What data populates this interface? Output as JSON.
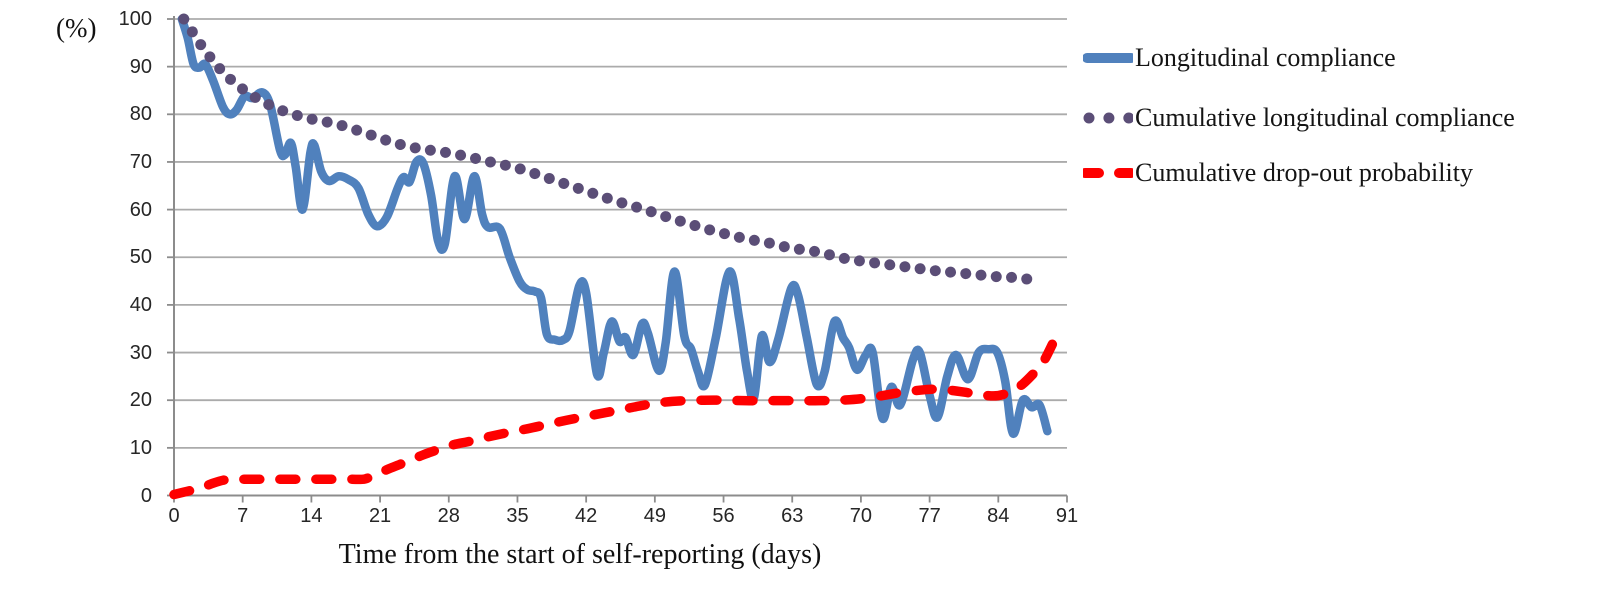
{
  "figure": {
    "y_axis_unit_label": "(%)",
    "x_axis_title": "Time from the start of self-reporting (days)"
  },
  "axes": {
    "y_ticks": [
      "100",
      "90",
      "80",
      "70",
      "60",
      "50",
      "40",
      "30",
      "20",
      "10",
      "0"
    ],
    "y_tick_values": [
      100,
      90,
      80,
      70,
      60,
      50,
      40,
      30,
      20,
      10,
      0
    ],
    "x_ticks": [
      "0",
      "7",
      "14",
      "21",
      "28",
      "35",
      "42",
      "49",
      "56",
      "63",
      "70",
      "77",
      "84",
      "91"
    ],
    "x_tick_values": [
      0,
      7,
      14,
      21,
      28,
      35,
      42,
      49,
      56,
      63,
      70,
      77,
      84,
      91
    ]
  },
  "legend": {
    "items": [
      {
        "label": "Longitudinal compliance",
        "style": "solid",
        "color": "#5081BD"
      },
      {
        "label": "Cumulative longitudinal compliance",
        "style": "dotted",
        "color": "#5B4E77"
      },
      {
        "label": "Cumulative drop-out probability",
        "style": "dashed",
        "color": "#FE0000"
      }
    ]
  },
  "chart_data": {
    "type": "line",
    "title": "",
    "xlabel": "Time from the start of self-reporting (days)",
    "ylabel": "(%)",
    "xlim": [
      0,
      91
    ],
    "ylim": [
      0,
      100
    ],
    "x_tick_step": 7,
    "y_tick_step": 10,
    "grid": true,
    "legend_position": "right",
    "series": [
      {
        "name": "Longitudinal compliance",
        "color": "#5081BD",
        "line_style": "solid",
        "points": [
          [
            0.8,
            100
          ],
          [
            1.4,
            96
          ],
          [
            2,
            90.5
          ],
          [
            2.6,
            89.8
          ],
          [
            3.2,
            90.5
          ],
          [
            4,
            87
          ],
          [
            5,
            81.5
          ],
          [
            5.7,
            80
          ],
          [
            6.4,
            81
          ],
          [
            7.2,
            83.8
          ],
          [
            8,
            83.4
          ],
          [
            9,
            84.6
          ],
          [
            9.8,
            82
          ],
          [
            10.8,
            72.5
          ],
          [
            11.3,
            71.5
          ],
          [
            11.9,
            74
          ],
          [
            12.4,
            69
          ],
          [
            13.1,
            60
          ],
          [
            13.9,
            72
          ],
          [
            14.3,
            73.5
          ],
          [
            15,
            68
          ],
          [
            15.8,
            66
          ],
          [
            16.8,
            67
          ],
          [
            17.8,
            66.3
          ],
          [
            18.8,
            64.5
          ],
          [
            19.8,
            59
          ],
          [
            20.7,
            56.5
          ],
          [
            21.7,
            58.5
          ],
          [
            22.8,
            64.5
          ],
          [
            23.4,
            66.8
          ],
          [
            24,
            65.8
          ],
          [
            24.7,
            70
          ],
          [
            25.4,
            69.7
          ],
          [
            26.2,
            63
          ],
          [
            26.9,
            53.5
          ],
          [
            27.6,
            52.8
          ],
          [
            28.6,
            67
          ],
          [
            29.6,
            58
          ],
          [
            30.6,
            67
          ],
          [
            31.4,
            59
          ],
          [
            32,
            56.3
          ],
          [
            33.2,
            56
          ],
          [
            34.2,
            50
          ],
          [
            35.2,
            45
          ],
          [
            36,
            43.2
          ],
          [
            36.8,
            42.8
          ],
          [
            37.4,
            41.5
          ],
          [
            38,
            33.8
          ],
          [
            38.8,
            32.7
          ],
          [
            39.6,
            32.6
          ],
          [
            40.3,
            34.5
          ],
          [
            41.3,
            44
          ],
          [
            42,
            42.5
          ],
          [
            43.1,
            25.5
          ],
          [
            43.8,
            30
          ],
          [
            44.6,
            36.5
          ],
          [
            45.4,
            32.3
          ],
          [
            46,
            33.2
          ],
          [
            46.8,
            29.5
          ],
          [
            47.7,
            36
          ],
          [
            48.3,
            34
          ],
          [
            49.4,
            26.2
          ],
          [
            50.1,
            32
          ],
          [
            51,
            47
          ],
          [
            52,
            33.5
          ],
          [
            52.7,
            30.7
          ],
          [
            53.4,
            26
          ],
          [
            54.1,
            23.2
          ],
          [
            55.2,
            33
          ],
          [
            56.6,
            47
          ],
          [
            57.6,
            37
          ],
          [
            58.4,
            26
          ],
          [
            59.1,
            20.5
          ],
          [
            59.9,
            33.5
          ],
          [
            60.7,
            28
          ],
          [
            61.6,
            33
          ],
          [
            62.9,
            43.5
          ],
          [
            63.6,
            42
          ],
          [
            64.5,
            33
          ],
          [
            65.5,
            23.3
          ],
          [
            66.3,
            26
          ],
          [
            67.3,
            36.5
          ],
          [
            68.2,
            33
          ],
          [
            68.8,
            31
          ],
          [
            69.6,
            26.4
          ],
          [
            70.5,
            29.5
          ],
          [
            71.2,
            30
          ],
          [
            72.2,
            16.2
          ],
          [
            73.1,
            22.8
          ],
          [
            74,
            19
          ],
          [
            75.3,
            28.5
          ],
          [
            76,
            30
          ],
          [
            77,
            21
          ],
          [
            77.8,
            16.4
          ],
          [
            78.8,
            25
          ],
          [
            79.7,
            29.5
          ],
          [
            80.9,
            24.4
          ],
          [
            82,
            30
          ],
          [
            83,
            30.7
          ],
          [
            83.9,
            30
          ],
          [
            84.7,
            24
          ],
          [
            85.5,
            13
          ],
          [
            86.5,
            20
          ],
          [
            87.4,
            18.5
          ],
          [
            88.2,
            19
          ],
          [
            89,
            13.5
          ]
        ]
      },
      {
        "name": "Cumulative longitudinal compliance",
        "color": "#5B4E77",
        "line_style": "dotted",
        "points": [
          [
            1,
            100
          ],
          [
            2,
            96.9
          ],
          [
            3,
            93.8
          ],
          [
            4,
            91.2
          ],
          [
            5,
            88.8
          ],
          [
            6,
            86.9
          ],
          [
            7,
            85.3
          ],
          [
            8,
            83.9
          ],
          [
            9,
            82.7
          ],
          [
            10,
            81.7
          ],
          [
            11,
            80.8
          ],
          [
            12,
            80.1
          ],
          [
            13,
            79.5
          ],
          [
            14,
            79
          ],
          [
            15,
            78.6
          ],
          [
            16,
            78.2
          ],
          [
            17,
            77.7
          ],
          [
            18,
            77.1
          ],
          [
            19,
            76.4
          ],
          [
            20,
            75.7
          ],
          [
            21,
            75
          ],
          [
            22,
            74.3
          ],
          [
            23,
            73.7
          ],
          [
            24,
            73.2
          ],
          [
            25,
            72.8
          ],
          [
            26,
            72.5
          ],
          [
            27,
            72.2
          ],
          [
            28,
            71.9
          ],
          [
            29,
            71.5
          ],
          [
            30,
            71.1
          ],
          [
            31,
            70.6
          ],
          [
            32,
            70.1
          ],
          [
            33,
            69.7
          ],
          [
            34,
            69.2
          ],
          [
            35,
            68.7
          ],
          [
            36,
            68.1
          ],
          [
            37,
            67.4
          ],
          [
            38,
            66.7
          ],
          [
            39,
            66
          ],
          [
            40,
            65.3
          ],
          [
            41,
            64.6
          ],
          [
            42,
            63.9
          ],
          [
            43,
            63.2
          ],
          [
            44,
            62.5
          ],
          [
            45,
            61.8
          ],
          [
            46,
            61.2
          ],
          [
            47,
            60.6
          ],
          [
            48,
            60
          ],
          [
            49,
            59.3
          ],
          [
            50,
            58.6
          ],
          [
            51,
            58
          ],
          [
            52,
            57.3
          ],
          [
            53,
            56.7
          ],
          [
            54,
            56.1
          ],
          [
            55,
            55.5
          ],
          [
            56,
            55
          ],
          [
            57,
            54.5
          ],
          [
            58,
            54
          ],
          [
            59,
            53.6
          ],
          [
            60,
            53.3
          ],
          [
            61,
            52.8
          ],
          [
            62,
            52.3
          ],
          [
            63,
            51.9
          ],
          [
            64,
            51.6
          ],
          [
            65,
            51.3
          ],
          [
            66,
            51
          ],
          [
            67,
            50.4
          ],
          [
            68,
            49.9
          ],
          [
            69,
            49.5
          ],
          [
            70,
            49.2
          ],
          [
            71,
            48.9
          ],
          [
            72,
            48.7
          ],
          [
            73,
            48.4
          ],
          [
            74,
            48.2
          ],
          [
            75,
            47.8
          ],
          [
            76,
            47.6
          ],
          [
            77,
            47.3
          ],
          [
            78,
            47.1
          ],
          [
            79,
            46.9
          ],
          [
            80,
            46.7
          ],
          [
            81,
            46.5
          ],
          [
            82,
            46.3
          ],
          [
            83,
            46.1
          ],
          [
            84,
            45.9
          ],
          [
            85,
            45.8
          ],
          [
            86,
            45.7
          ],
          [
            87,
            45.4
          ],
          [
            88,
            45
          ]
        ]
      },
      {
        "name": "Cumulative drop-out probability",
        "color": "#FE0000",
        "line_style": "dashed",
        "points": [
          [
            0,
            0.2
          ],
          [
            1,
            0.7
          ],
          [
            2,
            1.2
          ],
          [
            3,
            1.8
          ],
          [
            4,
            2.6
          ],
          [
            5,
            3.2
          ],
          [
            6,
            3.4
          ],
          [
            8,
            3.4
          ],
          [
            10,
            3.4
          ],
          [
            12,
            3.4
          ],
          [
            14,
            3.4
          ],
          [
            16,
            3.4
          ],
          [
            18,
            3.4
          ],
          [
            19.5,
            3.5
          ],
          [
            21,
            4.8
          ],
          [
            22,
            5.7
          ],
          [
            23,
            6.5
          ],
          [
            24,
            7.4
          ],
          [
            25,
            8.2
          ],
          [
            26,
            9
          ],
          [
            27,
            9.7
          ],
          [
            28,
            10.4
          ],
          [
            29,
            10.9
          ],
          [
            30,
            11.3
          ],
          [
            32,
            12.3
          ],
          [
            34,
            13.2
          ],
          [
            36,
            14
          ],
          [
            38,
            14.9
          ],
          [
            40,
            15.8
          ],
          [
            42,
            16.6
          ],
          [
            44,
            17.4
          ],
          [
            46,
            18.2
          ],
          [
            48,
            19
          ],
          [
            50,
            19.6
          ],
          [
            52,
            19.9
          ],
          [
            54,
            20
          ],
          [
            56,
            20
          ],
          [
            58,
            19.9
          ],
          [
            60,
            19.9
          ],
          [
            62,
            19.9
          ],
          [
            64,
            19.9
          ],
          [
            66,
            19.9
          ],
          [
            68,
            20
          ],
          [
            70,
            20.3
          ],
          [
            72,
            20.9
          ],
          [
            74,
            21.6
          ],
          [
            76,
            22.1
          ],
          [
            77.5,
            22.3
          ],
          [
            79,
            22.1
          ],
          [
            80.5,
            21.7
          ],
          [
            82,
            21.2
          ],
          [
            83.5,
            20.9
          ],
          [
            84.5,
            21.2
          ],
          [
            85.5,
            22
          ],
          [
            86.5,
            23.4
          ],
          [
            87.5,
            25.4
          ],
          [
            88.5,
            27.7
          ],
          [
            89.8,
            33
          ]
        ]
      }
    ]
  }
}
